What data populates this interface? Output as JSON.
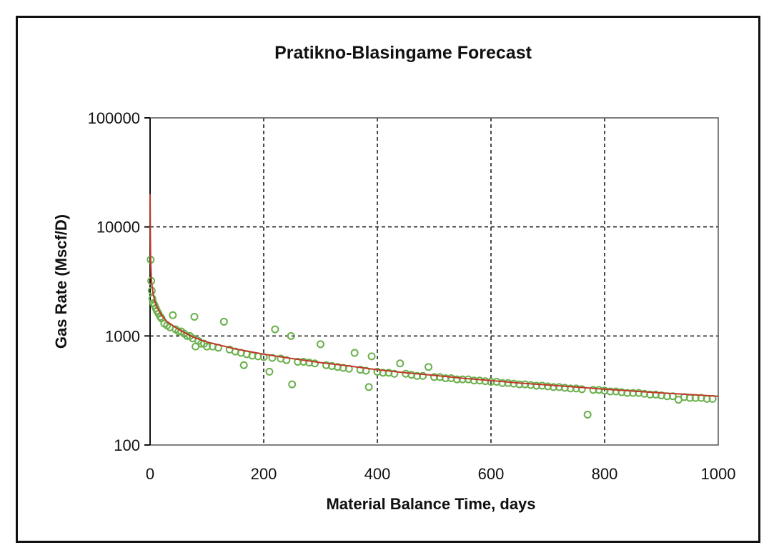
{
  "chart_data": {
    "type": "scatter",
    "title": "Pratikno-Blasingame Forecast",
    "xlabel": "Material Balance Time, days",
    "ylabel": "Gas Rate (Mscf/D)",
    "xlim": [
      0,
      1000
    ],
    "ylim": [
      100,
      100000
    ],
    "y_scale": "log",
    "grid": true,
    "x_ticks": [
      "0",
      "200",
      "400",
      "600",
      "800",
      "1000"
    ],
    "y_ticks": [
      "100",
      "1000",
      "10000",
      "100000"
    ],
    "colors": {
      "observed": "#6ab04c",
      "forecast": "#c0392b"
    },
    "series": [
      {
        "type": "scatter",
        "x": [
          1,
          2,
          3,
          4,
          6,
          8,
          10,
          12,
          15,
          18,
          20,
          25,
          30,
          35,
          40,
          45,
          50,
          55,
          60,
          65,
          70,
          75,
          78,
          80,
          85,
          90,
          95,
          100,
          110,
          120,
          130,
          140,
          150,
          160,
          165,
          170,
          180,
          190,
          200,
          210,
          215,
          220,
          230,
          240,
          248,
          250,
          260,
          270,
          280,
          290,
          300,
          310,
          320,
          330,
          340,
          350,
          360,
          370,
          380,
          385,
          390,
          400,
          410,
          420,
          430,
          440,
          450,
          460,
          470,
          480,
          490,
          500,
          510,
          520,
          530,
          540,
          550,
          560,
          570,
          580,
          590,
          600,
          610,
          620,
          630,
          640,
          650,
          660,
          670,
          680,
          690,
          700,
          710,
          720,
          730,
          740,
          750,
          760,
          770,
          780,
          790,
          800,
          810,
          820,
          830,
          840,
          850,
          860,
          870,
          880,
          890,
          900,
          910,
          920,
          930,
          940,
          950,
          960,
          970,
          980,
          990
        ],
        "y": [
          5000,
          3200,
          2600,
          2200,
          2000,
          1900,
          1800,
          1700,
          1600,
          1500,
          1450,
          1300,
          1250,
          1200,
          1550,
          1150,
          1100,
          1100,
          1050,
          1000,
          1000,
          950,
          1500,
          800,
          900,
          850,
          850,
          800,
          800,
          780,
          1350,
          750,
          720,
          700,
          540,
          680,
          660,
          650,
          640,
          470,
          630,
          1150,
          620,
          600,
          1000,
          360,
          580,
          580,
          570,
          560,
          840,
          540,
          530,
          520,
          510,
          500,
          700,
          490,
          480,
          340,
          650,
          470,
          460,
          460,
          450,
          560,
          450,
          440,
          430,
          430,
          520,
          420,
          420,
          410,
          410,
          400,
          400,
          400,
          390,
          390,
          385,
          380,
          380,
          370,
          370,
          365,
          360,
          360,
          355,
          350,
          350,
          345,
          340,
          340,
          335,
          330,
          330,
          325,
          190,
          320,
          320,
          315,
          310,
          310,
          305,
          300,
          300,
          300,
          295,
          290,
          290,
          285,
          280,
          280,
          260,
          275,
          270,
          270,
          270,
          265,
          265
        ]
      },
      {
        "type": "line",
        "x": [
          0,
          0.5,
          1,
          2,
          3,
          5,
          8,
          12,
          20,
          30,
          50,
          75,
          100,
          150,
          200,
          250,
          300,
          350,
          400,
          450,
          500,
          550,
          600,
          650,
          700,
          750,
          800,
          850,
          900,
          950,
          1000
        ],
        "y": [
          20000,
          8000,
          5000,
          3500,
          3000,
          2500,
          2100,
          1850,
          1550,
          1350,
          1150,
          980,
          880,
          760,
          680,
          620,
          570,
          530,
          490,
          460,
          435,
          410,
          390,
          370,
          355,
          340,
          325,
          312,
          300,
          290,
          280
        ]
      }
    ]
  }
}
